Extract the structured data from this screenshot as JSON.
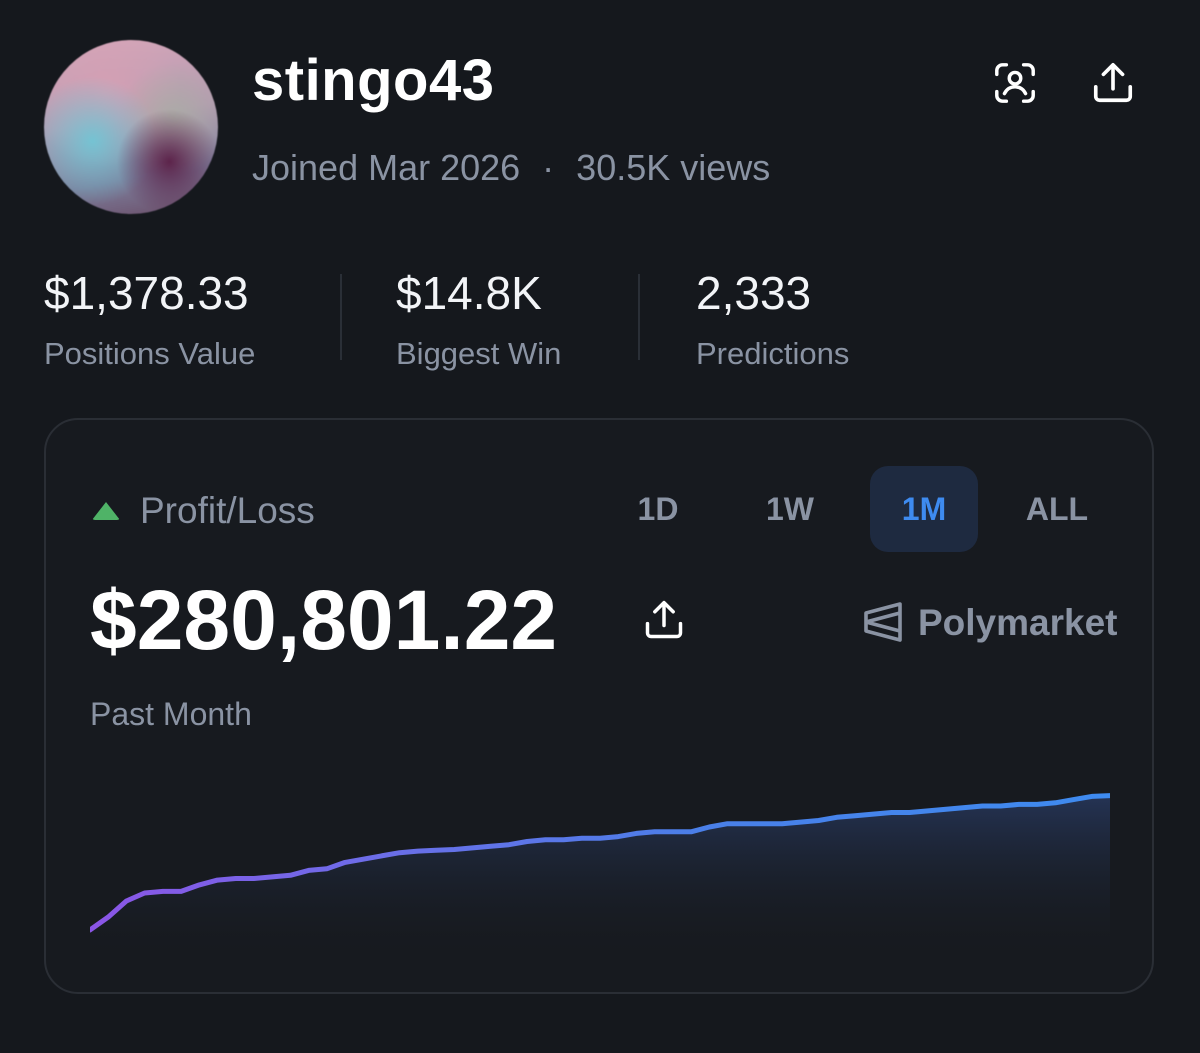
{
  "profile": {
    "username": "stingo43",
    "joined": "Joined Mar 2026",
    "separator": "·",
    "views": "30.5K views",
    "actions": {
      "scan_icon": "face-scan-icon",
      "share_icon": "share-icon"
    }
  },
  "stats": [
    {
      "value": "$1,378.33",
      "label": "Positions Value"
    },
    {
      "value": "$14.8K",
      "label": "Biggest Win"
    },
    {
      "value": "2,333",
      "label": "Predictions"
    }
  ],
  "pnl": {
    "title": "Profit/Loss",
    "trend_icon": "triangle-up-icon",
    "trend_color": "#4fb367",
    "tabs": [
      "1D",
      "1W",
      "1M",
      "ALL"
    ],
    "active_tab": "1M",
    "accent_color": "#3e8bf0",
    "amount": "$280,801.22",
    "period": "Past Month",
    "brand": "Polymarket"
  },
  "chart_data": {
    "type": "area",
    "title": "",
    "xlabel": "",
    "ylabel": "",
    "grid": false,
    "y": [
      0,
      8,
      18,
      23,
      24,
      24,
      28,
      31,
      32,
      32,
      33,
      34,
      37,
      38,
      42,
      44,
      46,
      48,
      49,
      49.5,
      50,
      51,
      52,
      53,
      55,
      56,
      56,
      57,
      57,
      58,
      60,
      61,
      61,
      61,
      64,
      66,
      66,
      66,
      66,
      67,
      68,
      70,
      71,
      72,
      73,
      73,
      74,
      75,
      76,
      77,
      77,
      78,
      78,
      79,
      81,
      83,
      83.5
    ],
    "ylim": [
      0,
      100
    ],
    "line_gradient": [
      "#8b55e6",
      "#4a7fe8",
      "#3e8bf0"
    ]
  }
}
